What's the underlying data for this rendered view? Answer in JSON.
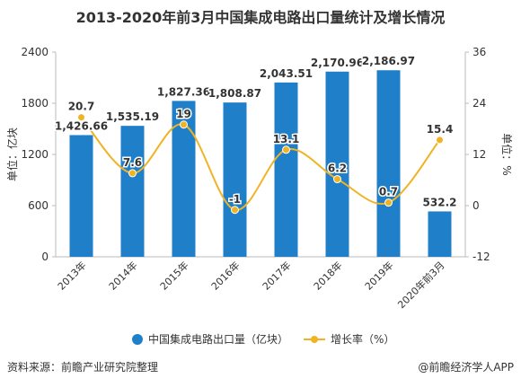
{
  "chart_data": {
    "type": "bar",
    "title": "2013-2020年前3月中国集成电路出口量统计及增长情况",
    "categories": [
      "2013年",
      "2014年",
      "2015年",
      "2016年",
      "2017年",
      "2018年",
      "2019年",
      "2020年前3月"
    ],
    "series": [
      {
        "name": "中国集成电路出口量（亿块）",
        "type": "bar",
        "axis": "left",
        "values": [
          1426.66,
          1535.19,
          1827.36,
          1808.87,
          2043.51,
          2170.96,
          2186.97,
          532.2
        ],
        "labels": [
          "1,426.66",
          "1,535.19",
          "1,827.36",
          "1,808.87",
          "2,043.51",
          "2,170.96",
          "2,186.97",
          "532.2"
        ],
        "color": "#1f7fc9"
      },
      {
        "name": "增长率（%）",
        "type": "line",
        "axis": "right",
        "values": [
          20.7,
          7.6,
          19,
          -1,
          13.1,
          6.2,
          0.7,
          15.4
        ],
        "labels": [
          "20.7",
          "7.6",
          "19",
          "-1",
          "13.1",
          "6.2",
          "0.7",
          "15.4"
        ],
        "color": "#f0b323"
      }
    ],
    "yleft": {
      "label": "单位：亿块",
      "ylim": [
        0,
        2400
      ],
      "ticks": [
        "0",
        "600",
        "1200",
        "1800",
        "2400"
      ]
    },
    "yright": {
      "label": "单位：%",
      "ylim": [
        -12,
        36
      ],
      "ticks": [
        "-12",
        "0",
        "12",
        "24",
        "36"
      ]
    },
    "grid": false,
    "legend_position": "bottom"
  },
  "footer": {
    "source": "资料来源：前瞻产业研究院整理",
    "brand": "@前瞻经济学人APP"
  }
}
